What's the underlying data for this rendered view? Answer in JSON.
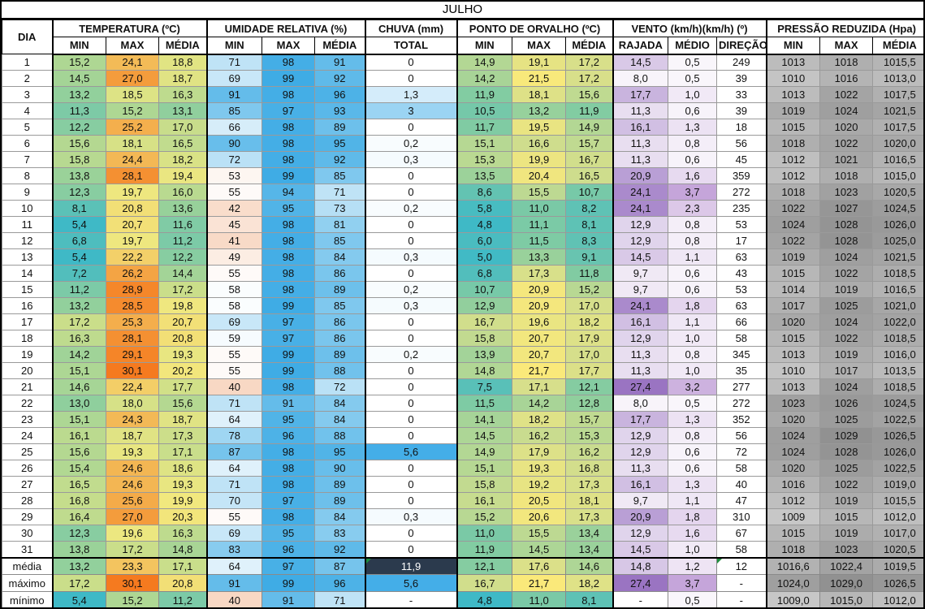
{
  "title": "JULHO",
  "columns": {
    "dia": "DIA",
    "groups": [
      {
        "label": "TEMPERATURA (ºC)",
        "key": "temp",
        "cols": [
          "MIN",
          "MAX",
          "MÉDIA"
        ]
      },
      {
        "label": "UMIDADE RELATIVA (%)",
        "key": "umid",
        "cols": [
          "MIN",
          "MAX",
          "MÉDIA"
        ]
      },
      {
        "label": "CHUVA (mm)",
        "key": "chuva",
        "cols": [
          "TOTAL"
        ]
      },
      {
        "label": "PONTO DE ORVALHO (ºC)",
        "key": "orvalho",
        "cols": [
          "MIN",
          "MAX",
          "MÉDIA"
        ]
      },
      {
        "label": "VENTO (km/h)(km/h) (º)",
        "key": "vento",
        "cols": [
          "RAJADA",
          "MÉDIO",
          "DIREÇÃO"
        ]
      },
      {
        "label": "PRESSÃO REDUZIDA (Hpa)",
        "key": "pressao",
        "cols": [
          "MIN",
          "MAX",
          "MÉDIA"
        ]
      }
    ]
  },
  "rows": [
    [
      "1",
      "15,2",
      "24,1",
      "18,8",
      "71",
      "98",
      "91",
      "0",
      "14,9",
      "19,1",
      "17,2",
      "14,5",
      "0,5",
      "249",
      "1013",
      "1018",
      "1015,5"
    ],
    [
      "2",
      "14,5",
      "27,0",
      "18,7",
      "69",
      "99",
      "92",
      "0",
      "14,2",
      "21,5",
      "17,2",
      "8,0",
      "0,5",
      "39",
      "1010",
      "1016",
      "1013,0"
    ],
    [
      "3",
      "13,2",
      "18,5",
      "16,3",
      "91",
      "98",
      "96",
      "1,3",
      "11,9",
      "18,1",
      "15,6",
      "17,7",
      "1,0",
      "33",
      "1013",
      "1022",
      "1017,5"
    ],
    [
      "4",
      "11,3",
      "15,2",
      "13,1",
      "85",
      "97",
      "93",
      "3",
      "10,5",
      "13,2",
      "11,9",
      "11,3",
      "0,6",
      "39",
      "1019",
      "1024",
      "1021,5"
    ],
    [
      "5",
      "12,2",
      "25,2",
      "17,0",
      "66",
      "98",
      "89",
      "0",
      "11,7",
      "19,5",
      "14,9",
      "16,1",
      "1,3",
      "18",
      "1015",
      "1020",
      "1017,5"
    ],
    [
      "6",
      "15,6",
      "18,1",
      "16,5",
      "90",
      "98",
      "95",
      "0,2",
      "15,1",
      "16,6",
      "15,7",
      "11,3",
      "0,8",
      "56",
      "1018",
      "1022",
      "1020,0"
    ],
    [
      "7",
      "15,8",
      "24,4",
      "18,2",
      "72",
      "98",
      "92",
      "0,3",
      "15,3",
      "19,9",
      "16,7",
      "11,3",
      "0,6",
      "45",
      "1012",
      "1021",
      "1016,5"
    ],
    [
      "8",
      "13,8",
      "28,1",
      "19,4",
      "53",
      "99",
      "85",
      "0",
      "13,5",
      "20,4",
      "16,5",
      "20,9",
      "1,6",
      "359",
      "1012",
      "1018",
      "1015,0"
    ],
    [
      "9",
      "12,3",
      "19,7",
      "16,0",
      "55",
      "94",
      "71",
      "0",
      "8,6",
      "15,5",
      "10,7",
      "24,1",
      "3,7",
      "272",
      "1018",
      "1023",
      "1020,5"
    ],
    [
      "10",
      "8,1",
      "20,8",
      "13,6",
      "42",
      "95",
      "73",
      "0,2",
      "5,8",
      "11,0",
      "8,2",
      "24,1",
      "2,3",
      "235",
      "1022",
      "1027",
      "1024,5"
    ],
    [
      "11",
      "5,4",
      "20,7",
      "11,6",
      "45",
      "98",
      "81",
      "0",
      "4,8",
      "11,1",
      "8,1",
      "12,9",
      "0,8",
      "53",
      "1024",
      "1028",
      "1026,0"
    ],
    [
      "12",
      "6,8",
      "19,7",
      "11,2",
      "41",
      "98",
      "85",
      "0",
      "6,0",
      "11,5",
      "8,3",
      "12,9",
      "0,8",
      "17",
      "1022",
      "1028",
      "1025,0"
    ],
    [
      "13",
      "5,4",
      "22,2",
      "12,2",
      "49",
      "98",
      "84",
      "0,3",
      "5,0",
      "13,3",
      "9,1",
      "14,5",
      "1,1",
      "63",
      "1019",
      "1024",
      "1021,5"
    ],
    [
      "14",
      "7,2",
      "26,2",
      "14,4",
      "55",
      "98",
      "86",
      "0",
      "6,8",
      "17,3",
      "11,8",
      "9,7",
      "0,6",
      "43",
      "1015",
      "1022",
      "1018,5"
    ],
    [
      "15",
      "11,2",
      "28,9",
      "17,2",
      "58",
      "98",
      "89",
      "0,2",
      "10,7",
      "20,9",
      "15,2",
      "9,7",
      "0,6",
      "53",
      "1014",
      "1019",
      "1016,5"
    ],
    [
      "16",
      "13,2",
      "28,5",
      "19,8",
      "58",
      "99",
      "85",
      "0,3",
      "12,9",
      "20,9",
      "17,0",
      "24,1",
      "1,8",
      "63",
      "1017",
      "1025",
      "1021,0"
    ],
    [
      "17",
      "17,2",
      "25,3",
      "20,7",
      "69",
      "97",
      "86",
      "0",
      "16,7",
      "19,6",
      "18,2",
      "16,1",
      "1,1",
      "66",
      "1020",
      "1024",
      "1022,0"
    ],
    [
      "18",
      "16,3",
      "28,1",
      "20,8",
      "59",
      "97",
      "86",
      "0",
      "15,8",
      "20,7",
      "17,9",
      "12,9",
      "1,0",
      "58",
      "1015",
      "1022",
      "1018,5"
    ],
    [
      "19",
      "14,2",
      "29,1",
      "19,3",
      "55",
      "99",
      "89",
      "0,2",
      "13,9",
      "20,7",
      "17,0",
      "11,3",
      "0,8",
      "345",
      "1013",
      "1019",
      "1016,0"
    ],
    [
      "20",
      "15,1",
      "30,1",
      "20,2",
      "55",
      "99",
      "88",
      "0",
      "14,8",
      "21,7",
      "17,7",
      "11,3",
      "1,0",
      "35",
      "1010",
      "1017",
      "1013,5"
    ],
    [
      "21",
      "14,6",
      "22,4",
      "17,7",
      "40",
      "98",
      "72",
      "0",
      "7,5",
      "17,1",
      "12,1",
      "27,4",
      "3,2",
      "277",
      "1013",
      "1024",
      "1018,5"
    ],
    [
      "22",
      "13,0",
      "18,0",
      "15,6",
      "71",
      "91",
      "84",
      "0",
      "11,5",
      "14,2",
      "12,8",
      "8,0",
      "0,5",
      "272",
      "1023",
      "1026",
      "1024,5"
    ],
    [
      "23",
      "15,1",
      "24,3",
      "18,7",
      "64",
      "95",
      "84",
      "0",
      "14,1",
      "18,2",
      "15,7",
      "17,7",
      "1,3",
      "352",
      "1020",
      "1025",
      "1022,5"
    ],
    [
      "24",
      "16,1",
      "18,7",
      "17,3",
      "78",
      "96",
      "88",
      "0",
      "14,5",
      "16,2",
      "15,3",
      "12,9",
      "0,8",
      "56",
      "1024",
      "1029",
      "1026,5"
    ],
    [
      "25",
      "15,6",
      "19,3",
      "17,1",
      "87",
      "98",
      "95",
      "5,6",
      "14,9",
      "17,9",
      "16,2",
      "12,9",
      "0,6",
      "72",
      "1024",
      "1028",
      "1026,0"
    ],
    [
      "26",
      "15,4",
      "24,6",
      "18,6",
      "64",
      "98",
      "90",
      "0",
      "15,1",
      "19,3",
      "16,8",
      "11,3",
      "0,6",
      "58",
      "1020",
      "1025",
      "1022,5"
    ],
    [
      "27",
      "16,5",
      "24,6",
      "19,3",
      "71",
      "98",
      "89",
      "0",
      "15,8",
      "19,2",
      "17,3",
      "16,1",
      "1,3",
      "40",
      "1016",
      "1022",
      "1019,0"
    ],
    [
      "28",
      "16,8",
      "25,6",
      "19,9",
      "70",
      "97",
      "89",
      "0",
      "16,1",
      "20,5",
      "18,1",
      "9,7",
      "1,1",
      "47",
      "1012",
      "1019",
      "1015,5"
    ],
    [
      "29",
      "16,4",
      "27,0",
      "20,3",
      "55",
      "98",
      "84",
      "0,3",
      "15,2",
      "20,6",
      "17,3",
      "20,9",
      "1,8",
      "310",
      "1009",
      "1015",
      "1012,0"
    ],
    [
      "30",
      "12,3",
      "19,6",
      "16,3",
      "69",
      "95",
      "83",
      "0",
      "11,0",
      "15,5",
      "13,4",
      "12,9",
      "1,6",
      "67",
      "1015",
      "1019",
      "1017,0"
    ],
    [
      "31",
      "13,8",
      "17,2",
      "14,8",
      "83",
      "96",
      "92",
      "0",
      "11,9",
      "14,5",
      "13,4",
      "14,5",
      "1,0",
      "58",
      "1018",
      "1023",
      "1020,5"
    ]
  ],
  "summary": [
    [
      "média",
      "13,2",
      "23,3",
      "17,1",
      "64",
      "97",
      "87",
      "11,9",
      "12,1",
      "17,6",
      "14,6",
      "14,8",
      "1,2",
      "12",
      "1016,6",
      "1022,4",
      "1019,5"
    ],
    [
      "máximo",
      "17,2",
      "30,1",
      "20,8",
      "91",
      "99",
      "96",
      "5,6",
      "16,7",
      "21,7",
      "18,2",
      "27,4",
      "3,7",
      "-",
      "1024,0",
      "1029,0",
      "1026,5"
    ],
    [
      "mínimo",
      "5,4",
      "15,2",
      "11,2",
      "40",
      "91",
      "71",
      "-",
      "4,8",
      "11,0",
      "8,1",
      "-",
      "0,5",
      "-",
      "1009,0",
      "1015,0",
      "1012,0"
    ]
  ],
  "scale_map": [
    null,
    "temp",
    "temp",
    "temp",
    "umid",
    "umid",
    "umid",
    "chuva",
    "orvalho",
    "orvalho",
    "orvalho",
    "vento_rajada",
    "vento_medio",
    null,
    "pressao",
    "pressao",
    "pressao"
  ],
  "scales": {
    "temp": [
      [
        5.4,
        "#3FB9C6"
      ],
      [
        13,
        "#8FCF9D"
      ],
      [
        20,
        "#F2E87E"
      ],
      [
        30.1,
        "#F57A1F"
      ]
    ],
    "umid": [
      [
        40,
        "#F8D8C4"
      ],
      [
        57,
        "#FFFFFF"
      ],
      [
        99,
        "#3FACE5"
      ]
    ],
    "chuva": [
      [
        0,
        "#FFFFFF"
      ],
      [
        5.6,
        "#44AEE8"
      ]
    ],
    "orvalho": [
      [
        4.8,
        "#3FB9C6"
      ],
      [
        12,
        "#83CCA1"
      ],
      [
        17,
        "#D6DF8B"
      ],
      [
        21.7,
        "#FAE97A"
      ]
    ],
    "vento_rajada": [
      [
        8,
        "#F8F4FA"
      ],
      [
        27.4,
        "#9A74C2"
      ]
    ],
    "vento_medio": [
      [
        0.5,
        "#F9F6FB"
      ],
      [
        3.7,
        "#C5A5DA"
      ]
    ],
    "pressao": [
      [
        1009,
        "#C7C7C7"
      ],
      [
        1029,
        "#919191"
      ]
    ]
  },
  "special_cells": [
    {
      "section": "summary",
      "row": 0,
      "col": 7,
      "bg": "#2B3A4D",
      "fg": "#FFFFFF",
      "flag": true
    },
    {
      "section": "summary",
      "row": 0,
      "col": 13,
      "flag": true
    }
  ],
  "flag_color": "#1E8E3E"
}
